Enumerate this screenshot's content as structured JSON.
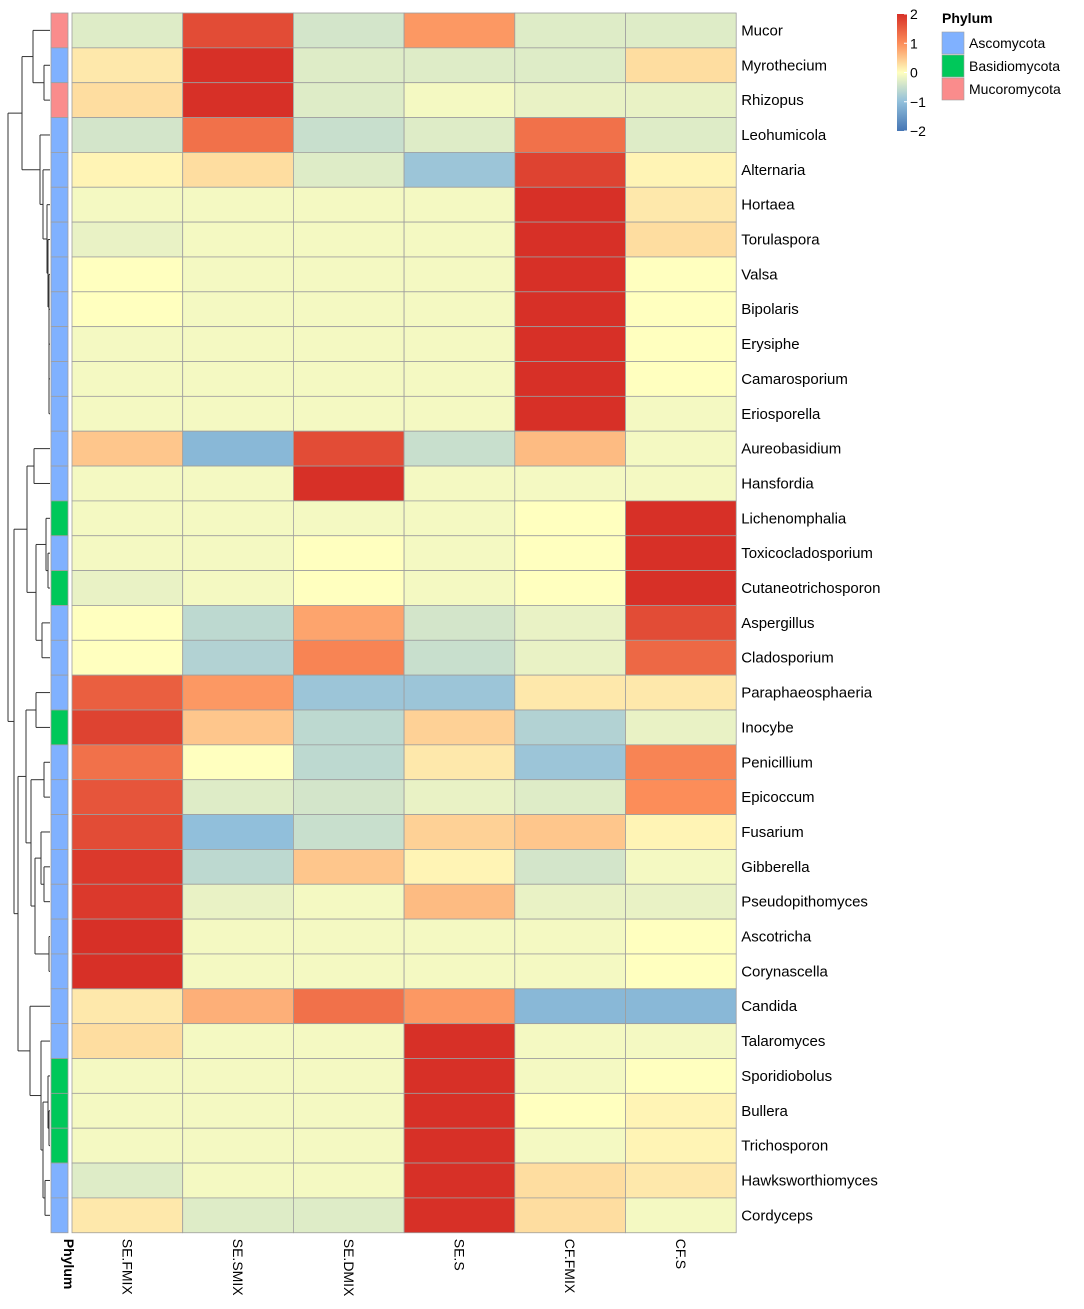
{
  "chart_data": {
    "type": "heatmap",
    "columns": [
      "SE.FMIX",
      "SE.SMIX",
      "SE.DMIX",
      "SE.S",
      "CF.FMIX",
      "CF.S"
    ],
    "rows": [
      {
        "genus": "Mucor",
        "phylum": "Mucoromycota",
        "values": [
          -0.3,
          1.7,
          -0.4,
          0.9,
          -0.3,
          -0.3
        ]
      },
      {
        "genus": "Myrothecium",
        "phylum": "Ascomycota",
        "values": [
          0.2,
          2.0,
          -0.3,
          -0.3,
          -0.3,
          0.3
        ]
      },
      {
        "genus": "Rhizopus",
        "phylum": "Mucoromycota",
        "values": [
          0.3,
          2.0,
          -0.3,
          -0.1,
          -0.2,
          -0.2
        ]
      },
      {
        "genus": "Leohumicola",
        "phylum": "Ascomycota",
        "values": [
          -0.4,
          1.3,
          -0.5,
          -0.3,
          1.3,
          -0.3
        ]
      },
      {
        "genus": "Alternaria",
        "phylum": "Ascomycota",
        "values": [
          0.1,
          0.3,
          -0.3,
          -0.9,
          1.8,
          0.1
        ]
      },
      {
        "genus": "Hortaea",
        "phylum": "Ascomycota",
        "values": [
          -0.1,
          -0.1,
          -0.1,
          -0.1,
          2.0,
          0.2
        ]
      },
      {
        "genus": "Torulaspora",
        "phylum": "Ascomycota",
        "values": [
          -0.2,
          -0.1,
          -0.1,
          -0.1,
          2.0,
          0.3
        ]
      },
      {
        "genus": "Valsa",
        "phylum": "Ascomycota",
        "values": [
          0.0,
          -0.1,
          -0.1,
          -0.1,
          2.0,
          0.0
        ]
      },
      {
        "genus": "Bipolaris",
        "phylum": "Ascomycota",
        "values": [
          0.0,
          -0.1,
          -0.1,
          -0.1,
          2.0,
          0.0
        ]
      },
      {
        "genus": "Erysiphe",
        "phylum": "Ascomycota",
        "values": [
          -0.1,
          -0.1,
          -0.1,
          -0.1,
          2.0,
          0.0
        ]
      },
      {
        "genus": "Camarosporium",
        "phylum": "Ascomycota",
        "values": [
          -0.1,
          -0.1,
          -0.1,
          -0.1,
          2.0,
          0.0
        ]
      },
      {
        "genus": "Eriosporella",
        "phylum": "Ascomycota",
        "values": [
          -0.1,
          -0.1,
          -0.1,
          -0.1,
          2.0,
          -0.1
        ]
      },
      {
        "genus": "Aureobasidium",
        "phylum": "Ascomycota",
        "values": [
          0.5,
          -1.1,
          1.7,
          -0.5,
          0.6,
          -0.1
        ]
      },
      {
        "genus": "Hansfordia",
        "phylum": "Ascomycota",
        "values": [
          -0.1,
          -0.1,
          2.0,
          -0.1,
          -0.1,
          -0.1
        ]
      },
      {
        "genus": "Lichenomphalia",
        "phylum": "Basidiomycota",
        "values": [
          -0.1,
          -0.1,
          -0.1,
          -0.1,
          0.0,
          2.0
        ]
      },
      {
        "genus": "Toxicocladosporium",
        "phylum": "Ascomycota",
        "values": [
          -0.1,
          -0.1,
          0.0,
          -0.1,
          0.0,
          2.0
        ]
      },
      {
        "genus": "Cutaneotrichosporon",
        "phylum": "Basidiomycota",
        "values": [
          -0.2,
          -0.1,
          0.0,
          -0.1,
          0.0,
          2.0
        ]
      },
      {
        "genus": "Aspergillus",
        "phylum": "Ascomycota",
        "values": [
          0.0,
          -0.6,
          0.8,
          -0.4,
          -0.2,
          1.7
        ]
      },
      {
        "genus": "Cladosporium",
        "phylum": "Ascomycota",
        "values": [
          0.0,
          -0.7,
          1.1,
          -0.5,
          -0.2,
          1.4
        ]
      },
      {
        "genus": "Paraphaeosphaeria",
        "phylum": "Ascomycota",
        "values": [
          1.5,
          0.9,
          -0.9,
          -0.9,
          0.2,
          0.2
        ]
      },
      {
        "genus": "Inocybe",
        "phylum": "Basidiomycota",
        "values": [
          1.8,
          0.5,
          -0.6,
          0.4,
          -0.7,
          -0.2
        ]
      },
      {
        "genus": "Penicillium",
        "phylum": "Ascomycota",
        "values": [
          1.3,
          0.0,
          -0.6,
          0.2,
          -0.9,
          1.1
        ]
      },
      {
        "genus": "Epicoccum",
        "phylum": "Ascomycota",
        "values": [
          1.6,
          -0.3,
          -0.4,
          -0.2,
          -0.3,
          1.0
        ]
      },
      {
        "genus": "Fusarium",
        "phylum": "Ascomycota",
        "values": [
          1.7,
          -1.0,
          -0.5,
          0.4,
          0.5,
          0.1
        ]
      },
      {
        "genus": "Gibberella",
        "phylum": "Ascomycota",
        "values": [
          1.9,
          -0.6,
          0.5,
          0.1,
          -0.4,
          -0.1
        ]
      },
      {
        "genus": "Pseudopithomyces",
        "phylum": "Ascomycota",
        "values": [
          1.9,
          -0.2,
          -0.1,
          0.6,
          -0.2,
          -0.2
        ]
      },
      {
        "genus": "Ascotricha",
        "phylum": "Ascomycota",
        "values": [
          2.0,
          -0.1,
          -0.1,
          -0.1,
          -0.1,
          0.0
        ]
      },
      {
        "genus": "Corynascella",
        "phylum": "Ascomycota",
        "values": [
          2.0,
          -0.1,
          -0.1,
          -0.1,
          -0.1,
          0.0
        ]
      },
      {
        "genus": "Candida",
        "phylum": "Ascomycota",
        "values": [
          0.2,
          0.7,
          1.3,
          0.9,
          -1.1,
          -1.1
        ]
      },
      {
        "genus": "Talaromyces",
        "phylum": "Ascomycota",
        "values": [
          0.3,
          -0.1,
          -0.1,
          2.0,
          -0.1,
          -0.1
        ]
      },
      {
        "genus": "Sporidiobolus",
        "phylum": "Basidiomycota",
        "values": [
          -0.1,
          -0.1,
          -0.1,
          2.0,
          -0.1,
          0.0
        ]
      },
      {
        "genus": "Bullera",
        "phylum": "Basidiomycota",
        "values": [
          -0.1,
          -0.1,
          -0.1,
          2.0,
          0.0,
          0.1
        ]
      },
      {
        "genus": "Trichosporon",
        "phylum": "Basidiomycota",
        "values": [
          -0.1,
          -0.1,
          -0.1,
          2.0,
          -0.1,
          0.1
        ]
      },
      {
        "genus": "Hawksworthiomyces",
        "phylum": "Ascomycota",
        "values": [
          -0.3,
          -0.1,
          -0.1,
          2.0,
          0.3,
          0.2
        ]
      },
      {
        "genus": "Cordyceps",
        "phylum": "Ascomycota",
        "values": [
          0.2,
          -0.3,
          -0.3,
          2.0,
          0.3,
          -0.1
        ]
      }
    ],
    "annotation_label": "Phylum",
    "color_scale": {
      "min": -2,
      "max": 2,
      "ticks": [
        "2",
        "1",
        "0",
        "−1",
        "−2"
      ],
      "stops": [
        {
          "v": -2,
          "color": "#4575b4"
        },
        {
          "v": -1,
          "color": "#91bfdb"
        },
        {
          "v": 0,
          "color": "#ffffbf"
        },
        {
          "v": 1,
          "color": "#fc8d59"
        },
        {
          "v": 2,
          "color": "#d73027"
        }
      ]
    },
    "legend": {
      "title": "Phylum",
      "entries": [
        {
          "name": "Ascomycota",
          "color": "#80b1ff"
        },
        {
          "name": "Basidiomycota",
          "color": "#00c85a"
        },
        {
          "name": "Mucoromycota",
          "color": "#fa8c8c"
        }
      ]
    }
  }
}
